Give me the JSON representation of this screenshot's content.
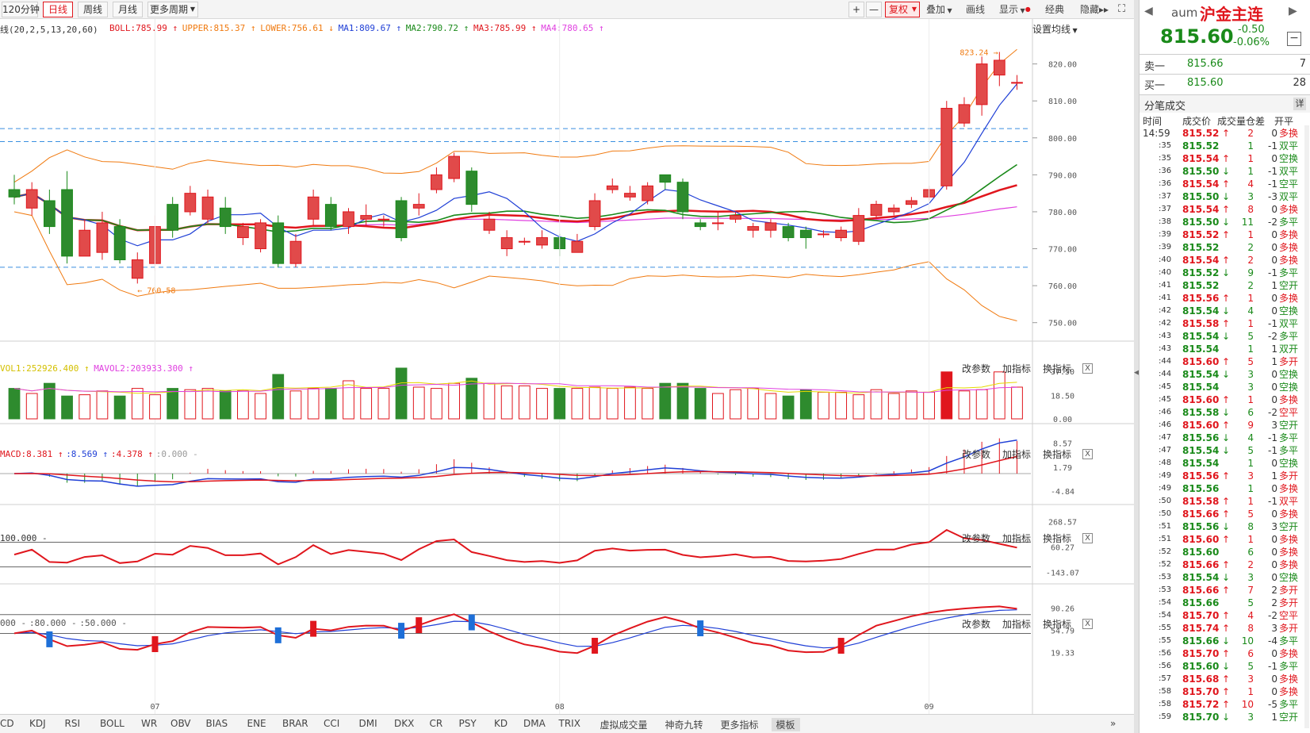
{
  "toolbar": {
    "left_tabs": [
      "120分钟",
      "日线",
      "周线",
      "月线",
      "更多周期"
    ],
    "active_tab": "日线",
    "zoom_in": "+",
    "zoom_out": "—",
    "restore": "复权",
    "overlay": "叠加",
    "draw": "画线",
    "display": "显示",
    "classic": "经典",
    "hide": "隐藏"
  },
  "main_chart": {
    "legend": [
      {
        "text": "线(20,2,5,13,20,60)",
        "color": "#333333"
      },
      {
        "text": "BOLL:785.99",
        "arrow": "↑",
        "color": "#e0161d"
      },
      {
        "text": "UPPER:815.37",
        "arrow": "↑",
        "color": "#f07a10"
      },
      {
        "text": "LOWER:756.61",
        "arrow": "↓",
        "color": "#f07a10"
      },
      {
        "text": "MA1:809.67",
        "arrow": "↑",
        "color": "#1f3fd6"
      },
      {
        "text": "MA2:790.72",
        "arrow": "↑",
        "color": "#1a8a1a"
      },
      {
        "text": "MA3:785.99",
        "arrow": "↑",
        "color": "#e0161d"
      },
      {
        "text": "MA4:780.65",
        "arrow": "↑",
        "color": "#e040e0"
      }
    ],
    "set_ma_label": "设置均线",
    "y_ticks": [
      "820.00",
      "810.00",
      "800.00",
      "790.00",
      "780.00",
      "770.00",
      "760.00",
      "750.00"
    ],
    "high_label": "823.24",
    "low_label": "760.58",
    "x_labels": [
      "07",
      "08",
      "09"
    ]
  },
  "volume": {
    "legend": [
      {
        "text": "VOL1:252926.400",
        "arrow": "↑",
        "color": "#d4c000"
      },
      {
        "text": "MAVOL2:203933.300",
        "arrow": "↑",
        "color": "#e040e0"
      }
    ],
    "y_ticks": [
      "37.50",
      "18.50",
      "0.00"
    ]
  },
  "macd": {
    "legend": [
      {
        "text": "MACD:8.381",
        "arrow": "↑",
        "color": "#e0161d"
      },
      {
        "text": ":8.569",
        "arrow": "↑",
        "color": "#1f3fd6"
      },
      {
        "text": ":4.378",
        "arrow": "↑",
        "color": "#e0161d"
      },
      {
        "text": ":0.000",
        "arrow": "-",
        "color": "#999999"
      }
    ],
    "y_ticks": [
      "8.57",
      "1.79",
      "-4.84"
    ]
  },
  "cci": {
    "legend": [
      {
        "text": "100.000",
        "arrow": "-",
        "color": "#333333"
      }
    ],
    "y_ticks": [
      "268.57",
      "60.27",
      "-143.07"
    ]
  },
  "kd": {
    "legend": [
      {
        "text": "000",
        "arrow": "-",
        "color": "#555555"
      },
      {
        "text": ":80.000",
        "arrow": "-",
        "color": "#555555"
      },
      {
        "text": ":50.000",
        "arrow": "-",
        "color": "#555555"
      }
    ],
    "y_ticks": [
      "90.26",
      "54.79",
      "19.33"
    ]
  },
  "panel_buttons": {
    "params": "改参数",
    "add": "加指标",
    "switch": "换指标",
    "close": "X"
  },
  "indicator_tabs": [
    "CD",
    "KDJ",
    "RSI",
    "BOLL",
    "WR",
    "OBV",
    "BIAS",
    "ENE",
    "BRAR",
    "CCI",
    "DMI",
    "DKX",
    "CR",
    "PSY",
    "KD",
    "DMA",
    "TRIX",
    "虚拟成交量",
    "神奇九转",
    "更多指标",
    "模板"
  ],
  "selected_indicator_tab": "模板",
  "quote": {
    "code": "aum",
    "name": "沪金主连",
    "price": "815.60",
    "change": "-0.50",
    "change_pct": "-0.06%",
    "sell_label": "卖一",
    "sell_price": "815.66",
    "sell_vol": "7",
    "buy_label": "买一",
    "buy_price": "815.60",
    "buy_vol": "28",
    "section_title": "分笔成交",
    "detail_btn": "详",
    "headers": [
      "时间",
      "成交价",
      "成交量",
      "仓差",
      "开平"
    ]
  },
  "trades": [
    [
      "14:59",
      "815.52",
      "↑",
      "2",
      "0",
      "多换",
      "r"
    ],
    [
      ":35",
      "815.52",
      "",
      "1",
      "-1",
      "双平",
      "g"
    ],
    [
      ":35",
      "815.54",
      "↑",
      "1",
      "0",
      "空换",
      "g"
    ],
    [
      ":36",
      "815.50",
      "↓",
      "1",
      "-1",
      "双平",
      "g"
    ],
    [
      ":36",
      "815.54",
      "↑",
      "4",
      "-1",
      "空平",
      "g"
    ],
    [
      ":37",
      "815.50",
      "↓",
      "3",
      "-3",
      "双平",
      "g"
    ],
    [
      ":37",
      "815.54",
      "↑",
      "8",
      "0",
      "多换",
      "r"
    ],
    [
      ":38",
      "815.50",
      "↓",
      "11",
      "-2",
      "多平",
      "g"
    ],
    [
      ":39",
      "815.52",
      "↑",
      "1",
      "0",
      "多换",
      "r"
    ],
    [
      ":39",
      "815.52",
      "",
      "2",
      "0",
      "多换",
      "r"
    ],
    [
      ":40",
      "815.54",
      "↑",
      "2",
      "0",
      "多换",
      "r"
    ],
    [
      ":40",
      "815.52",
      "↓",
      "9",
      "-1",
      "多平",
      "g"
    ],
    [
      ":41",
      "815.52",
      "",
      "2",
      "1",
      "空开",
      "g"
    ],
    [
      ":41",
      "815.56",
      "↑",
      "1",
      "0",
      "多换",
      "r"
    ],
    [
      ":42",
      "815.54",
      "↓",
      "4",
      "0",
      "空换",
      "g"
    ],
    [
      ":42",
      "815.58",
      "↑",
      "1",
      "-1",
      "双平",
      "g"
    ],
    [
      ":43",
      "815.54",
      "↓",
      "5",
      "-2",
      "多平",
      "g"
    ],
    [
      ":43",
      "815.54",
      "",
      "1",
      "1",
      "双开",
      "g"
    ],
    [
      ":44",
      "815.60",
      "↑",
      "5",
      "1",
      "多开",
      "r"
    ],
    [
      ":44",
      "815.54",
      "↓",
      "3",
      "0",
      "空换",
      "g"
    ],
    [
      ":45",
      "815.54",
      "",
      "3",
      "0",
      "空换",
      "g"
    ],
    [
      ":45",
      "815.60",
      "↑",
      "1",
      "0",
      "多换",
      "r"
    ],
    [
      ":46",
      "815.58",
      "↓",
      "6",
      "-2",
      "空平",
      "r"
    ],
    [
      ":46",
      "815.60",
      "↑",
      "9",
      "3",
      "空开",
      "g"
    ],
    [
      ":47",
      "815.56",
      "↓",
      "4",
      "-1",
      "多平",
      "g"
    ],
    [
      ":47",
      "815.54",
      "↓",
      "5",
      "-1",
      "多平",
      "g"
    ],
    [
      ":48",
      "815.54",
      "",
      "1",
      "0",
      "空换",
      "g"
    ],
    [
      ":49",
      "815.56",
      "↑",
      "3",
      "1",
      "多开",
      "r"
    ],
    [
      ":49",
      "815.56",
      "",
      "1",
      "0",
      "多换",
      "r"
    ],
    [
      ":50",
      "815.58",
      "↑",
      "1",
      "-1",
      "双平",
      "r"
    ],
    [
      ":50",
      "815.66",
      "↑",
      "5",
      "0",
      "多换",
      "r"
    ],
    [
      ":51",
      "815.56",
      "↓",
      "8",
      "3",
      "空开",
      "g"
    ],
    [
      ":51",
      "815.60",
      "↑",
      "1",
      "0",
      "多换",
      "r"
    ],
    [
      ":52",
      "815.60",
      "",
      "6",
      "0",
      "多换",
      "r"
    ],
    [
      ":52",
      "815.66",
      "↑",
      "2",
      "0",
      "多换",
      "r"
    ],
    [
      ":53",
      "815.54",
      "↓",
      "3",
      "0",
      "空换",
      "g"
    ],
    [
      ":53",
      "815.66",
      "↑",
      "7",
      "2",
      "多开",
      "r"
    ],
    [
      ":54",
      "815.66",
      "",
      "5",
      "2",
      "多开",
      "r"
    ],
    [
      ":54",
      "815.70",
      "↑",
      "4",
      "-2",
      "空平",
      "r"
    ],
    [
      ":55",
      "815.74",
      "↑",
      "8",
      "3",
      "多开",
      "r"
    ],
    [
      ":55",
      "815.66",
      "↓",
      "10",
      "-4",
      "多平",
      "g"
    ],
    [
      ":56",
      "815.70",
      "↑",
      "6",
      "0",
      "多换",
      "r"
    ],
    [
      ":56",
      "815.60",
      "↓",
      "5",
      "-1",
      "多平",
      "g"
    ],
    [
      ":57",
      "815.68",
      "↑",
      "3",
      "0",
      "多换",
      "r"
    ],
    [
      ":58",
      "815.70",
      "↑",
      "1",
      "0",
      "多换",
      "r"
    ],
    [
      ":58",
      "815.72",
      "↑",
      "10",
      "-5",
      "多平",
      "g"
    ],
    [
      ":59",
      "815.70",
      "↓",
      "3",
      "1",
      "空开",
      "g"
    ]
  ],
  "chart_data": {
    "type": "candlestick",
    "ylim": [
      745,
      827
    ],
    "candles": [
      [
        786,
        784,
        790,
        782
      ],
      [
        781,
        786,
        788,
        779
      ],
      [
        783,
        776,
        786,
        774
      ],
      [
        786,
        768,
        791,
        766
      ],
      [
        768,
        775,
        778,
        771
      ],
      [
        769,
        777,
        780,
        767
      ],
      [
        776,
        767,
        778,
        766
      ],
      [
        762,
        767,
        769,
        760.58
      ],
      [
        766,
        776,
        779,
        764
      ],
      [
        782,
        775,
        784,
        773
      ],
      [
        780,
        785,
        787,
        779
      ],
      [
        778,
        784,
        786,
        777
      ],
      [
        781,
        776,
        784,
        774
      ],
      [
        773,
        776,
        777,
        771
      ],
      [
        770,
        777,
        778,
        769
      ],
      [
        777,
        766,
        779,
        765
      ],
      [
        766,
        772,
        774,
        765
      ],
      [
        778,
        784,
        786,
        776
      ],
      [
        782,
        776,
        784,
        775
      ],
      [
        776,
        780,
        781,
        774
      ],
      [
        778,
        779,
        782,
        776
      ],
      [
        778,
        778,
        779,
        776
      ],
      [
        783,
        773,
        784,
        772
      ],
      [
        781,
        782,
        785,
        779
      ],
      [
        786,
        790,
        792,
        785
      ],
      [
        789,
        795,
        796,
        788
      ],
      [
        791,
        782,
        792,
        780
      ],
      [
        775,
        778,
        780,
        774
      ],
      [
        770,
        773,
        775,
        768
      ],
      [
        772,
        772,
        773,
        771
      ],
      [
        771,
        773,
        775,
        770
      ],
      [
        773,
        770,
        774,
        768
      ],
      [
        769,
        772,
        774,
        769
      ],
      [
        776,
        783,
        785,
        775
      ],
      [
        786,
        787,
        789,
        785
      ],
      [
        784,
        785,
        787,
        783
      ],
      [
        783,
        787,
        788,
        782
      ],
      [
        790,
        788,
        790,
        786
      ],
      [
        788,
        780,
        789,
        778
      ],
      [
        777,
        776,
        778,
        775
      ],
      [
        777,
        777,
        780,
        775
      ],
      [
        778,
        779,
        780,
        777
      ],
      [
        775,
        776,
        777,
        773
      ],
      [
        775,
        777,
        778,
        773
      ],
      [
        776,
        773,
        777,
        772
      ],
      [
        775,
        773,
        776,
        770
      ],
      [
        774,
        774,
        775,
        773
      ],
      [
        773,
        775,
        776,
        772
      ],
      [
        772,
        779,
        781,
        771
      ],
      [
        779,
        782,
        783,
        778
      ],
      [
        780,
        781,
        782,
        779
      ],
      [
        782,
        783,
        784,
        781
      ],
      [
        784,
        786,
        787,
        783
      ],
      [
        787,
        808,
        810,
        786
      ],
      [
        804,
        809,
        811,
        803
      ],
      [
        809,
        820,
        822,
        806
      ],
      [
        817,
        821,
        823.24,
        814
      ],
      [
        815,
        815,
        817,
        813
      ]
    ],
    "volumes": [
      24,
      20,
      28,
      18,
      19,
      22,
      18,
      24,
      19,
      24,
      23,
      24,
      22,
      22,
      20,
      35,
      22,
      24,
      24,
      30,
      24,
      24,
      40,
      25,
      24,
      28,
      32,
      28,
      26,
      26,
      24,
      24,
      24,
      25,
      24,
      25,
      24,
      28,
      28,
      24,
      20,
      23,
      24,
      20,
      18,
      23,
      21,
      21,
      19,
      23,
      20,
      22,
      21,
      37,
      22,
      23,
      37,
      25
    ]
  }
}
